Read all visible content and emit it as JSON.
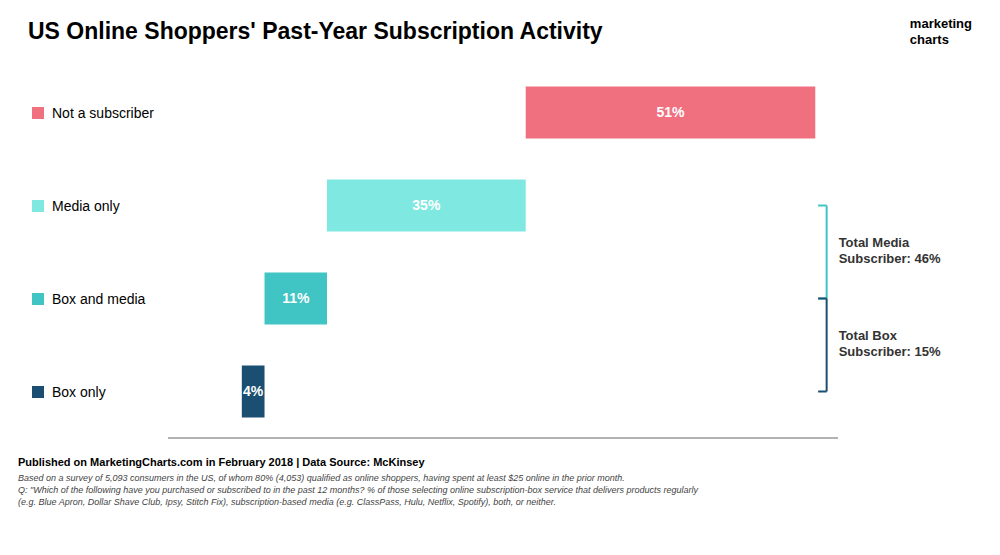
{
  "chart_data": {
    "type": "waterfall",
    "title": "US Online Shoppers' Past-Year Subscription Activity",
    "orientation": "horizontal",
    "categories": [
      "Box only",
      "Box and media",
      "Media only",
      "Not a subscriber"
    ],
    "values": [
      4,
      11,
      35,
      51
    ],
    "value_labels": [
      "4%",
      "11%",
      "35%",
      "51%"
    ],
    "data_labels": true,
    "colors": [
      "#1b4f72",
      "#40c4c4",
      "#7fe8e0",
      "#f07080"
    ],
    "xlim": [
      -13,
      105
    ],
    "tick_labels": false,
    "grid": false,
    "legend": "left",
    "annotations": [
      {
        "text": "Total Media\nSubscriber: 46%",
        "color": "#40c4c4",
        "categories": [
          "Box and media",
          "Media only"
        ]
      },
      {
        "text": "Total Box\nSubscriber: 15%",
        "color": "#1b4f72",
        "categories": [
          "Box only",
          "Box and media"
        ]
      }
    ],
    "footer": [
      "Published on MarketingCharts.com in February 2018 | Data Source: McKinsey",
      "Based on a survey of 5,093 consumers in the US, of whom 80% (4,053) qualified as online shoppers, having spent at least $25 online in the prior month.",
      "Q: \"Which of the following have you purchased or subscribed to in the past 12 months? % of those selecting online subscription-box service that delivers products regularly",
      "(e.g. Blue Apron, Dollar Shave Club, Ipsy, Stitch Fix), subscription-based media (e.g. ClassPass, Hulu, Netflix, Spotify), both, or neither."
    ],
    "logo": "marketing\ncharts"
  }
}
